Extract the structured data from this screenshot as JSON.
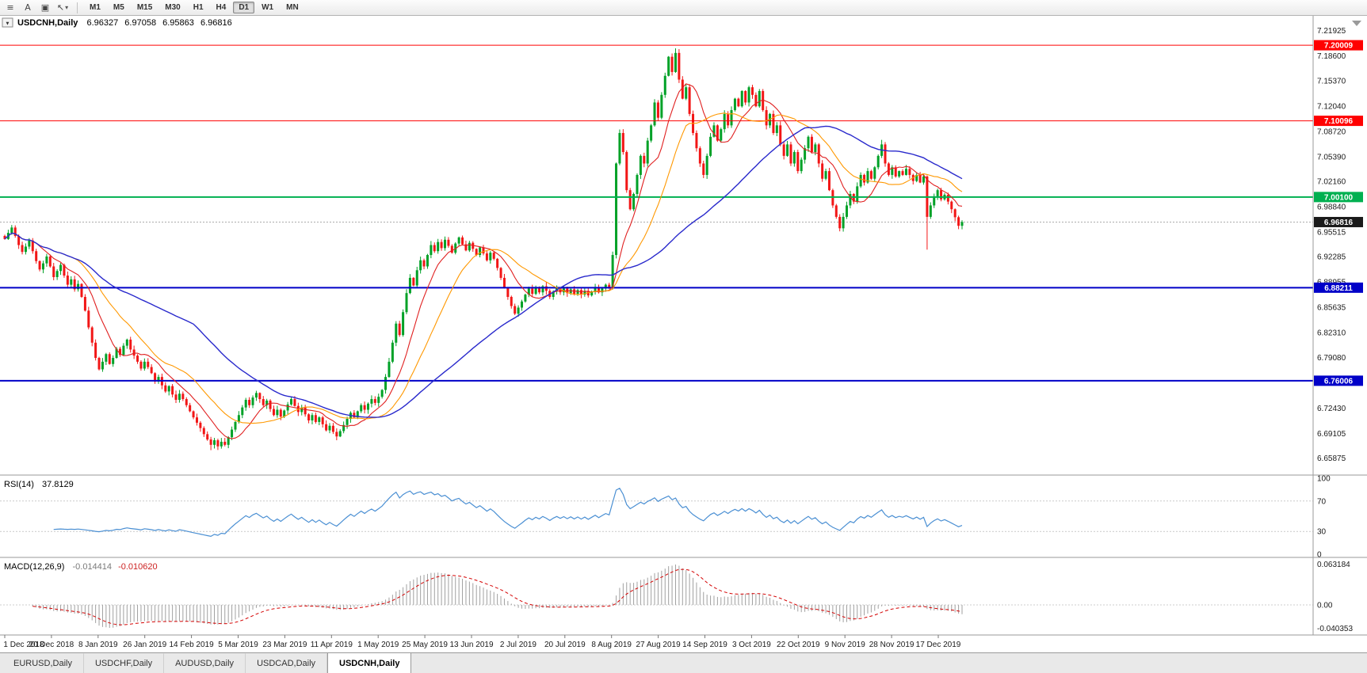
{
  "toolbar": {
    "icons": [
      {
        "name": "chart-list-icon",
        "glyph": "≡"
      },
      {
        "name": "letter-a-icon",
        "glyph": "A"
      },
      {
        "name": "chart-window-icon",
        "glyph": "▣"
      },
      {
        "name": "cursor-tool-icon",
        "glyph": "↖"
      },
      {
        "name": "dropdown-caret",
        "glyph": "▾"
      }
    ],
    "timeframes": [
      {
        "label": "M1"
      },
      {
        "label": "M5"
      },
      {
        "label": "M15"
      },
      {
        "label": "M30"
      },
      {
        "label": "H1"
      },
      {
        "label": "H4"
      },
      {
        "label": "D1",
        "active": true
      },
      {
        "label": "W1"
      },
      {
        "label": "MN"
      }
    ]
  },
  "chart_header": {
    "collapse_glyph": "▼",
    "symbol": "USDCNH,Daily",
    "open": "6.96327",
    "high": "6.97058",
    "low": "6.95863",
    "close": "6.96816"
  },
  "price_axis_labels": [
    "7.21925",
    "7.18600",
    "7.15370",
    "7.12040",
    "7.08720",
    "7.05390",
    "7.02160",
    "6.98840",
    "6.95515",
    "6.92285",
    "6.88955",
    "6.85635",
    "6.82310",
    "6.79080",
    "6.75750",
    "6.72430",
    "6.69105",
    "6.65875"
  ],
  "levels": [
    {
      "value": 7.20009,
      "label": "7.20009",
      "color": "#ff0000",
      "width": 1
    },
    {
      "value": 7.10096,
      "label": "7.10096",
      "color": "#ff0000",
      "width": 1
    },
    {
      "value": 7.001,
      "label": "7.00100",
      "color": "#00b050",
      "width": 2
    },
    {
      "value": 6.88211,
      "label": "6.88211",
      "color": "#0000c8",
      "width": 2
    },
    {
      "value": 6.76006,
      "label": "6.76006",
      "color": "#0000c8",
      "width": 2
    }
  ],
  "current_price": {
    "value": 6.96816,
    "label": "6.96816",
    "color": "#1a1a1a"
  },
  "rsi_panel": {
    "name": "RSI(14)",
    "value": "37.8129",
    "axis_labels": [
      "100",
      "70",
      "30",
      "0"
    ],
    "guide_levels": [
      70,
      30
    ],
    "line_color": "#4a8fd3"
  },
  "macd_panel": {
    "name": "MACD(12,26,9)",
    "macd_value": "-0.014414",
    "signal_value": "-0.010620",
    "axis_labels": [
      "0.063184",
      "0.00",
      "-0.040353"
    ],
    "histogram_color": "#a0a0a0",
    "signal_color": "#d40000"
  },
  "time_axis_labels": [
    "1 Dec 2018",
    "20 Dec 2018",
    "8 Jan 2019",
    "26 Jan 2019",
    "14 Feb 2019",
    "5 Mar 2019",
    "23 Mar 2019",
    "11 Apr 2019",
    "1 May 2019",
    "25 May 2019",
    "13 Jun 2019",
    "2 Jul 2019",
    "20 Jul 2019",
    "8 Aug 2019",
    "27 Aug 2019",
    "14 Sep 2019",
    "3 Oct 2019",
    "22 Oct 2019",
    "9 Nov 2019",
    "28 Nov 2019",
    "17 Dec 2019"
  ],
  "tabs": [
    {
      "label": "EURUSD,Daily"
    },
    {
      "label": "USDCHF,Daily"
    },
    {
      "label": "AUDUSD,Daily"
    },
    {
      "label": "USDCAD,Daily"
    },
    {
      "label": "USDCNH,Daily",
      "active": true
    }
  ],
  "chart_data": {
    "type": "candlestick",
    "symbol": "USDCNH",
    "timeframe": "Daily",
    "price_range": [
      6.6405,
      7.2345
    ],
    "last_bar": {
      "open": 6.96327,
      "high": 6.97058,
      "low": 6.95863,
      "close": 6.96816
    },
    "closes": [
      6.946,
      6.954,
      6.961,
      6.95,
      6.938,
      6.929,
      6.936,
      6.944,
      6.93,
      6.917,
      6.906,
      6.914,
      6.923,
      6.91,
      6.896,
      6.904,
      6.912,
      6.898,
      6.886,
      6.893,
      6.88,
      6.887,
      6.87,
      6.852,
      6.83,
      6.81,
      6.79,
      6.775,
      6.785,
      6.795,
      6.782,
      6.79,
      6.802,
      6.794,
      6.806,
      6.814,
      6.801,
      6.793,
      6.785,
      6.776,
      6.785,
      6.778,
      6.77,
      6.759,
      6.765,
      6.754,
      6.746,
      6.753,
      6.742,
      6.735,
      6.743,
      6.736,
      6.728,
      6.72,
      6.712,
      6.705,
      6.698,
      6.69,
      6.683,
      6.676,
      6.682,
      6.674,
      6.68,
      6.676,
      6.686,
      6.696,
      6.706,
      6.715,
      6.725,
      6.735,
      6.728,
      6.738,
      6.744,
      6.736,
      6.728,
      6.734,
      6.723,
      6.715,
      6.722,
      6.713,
      6.721,
      6.729,
      6.736,
      6.727,
      6.719,
      6.725,
      6.716,
      6.708,
      6.715,
      6.706,
      6.712,
      6.703,
      6.695,
      6.701,
      6.693,
      6.687,
      6.694,
      6.702,
      6.71,
      6.718,
      6.712,
      6.72,
      6.728,
      6.722,
      6.73,
      6.736,
      6.731,
      6.739,
      6.748,
      6.765,
      6.785,
      6.81,
      6.835,
      6.82,
      6.85,
      6.875,
      6.895,
      6.885,
      6.905,
      6.918,
      6.91,
      6.925,
      6.938,
      6.93,
      6.942,
      6.934,
      6.945,
      6.937,
      6.928,
      6.94,
      6.948,
      6.939,
      6.931,
      6.941,
      6.933,
      6.925,
      6.935,
      6.927,
      6.918,
      6.928,
      6.92,
      6.908,
      6.895,
      6.882,
      6.87,
      6.858,
      6.848,
      6.856,
      6.864,
      6.873,
      6.881,
      6.874,
      6.882,
      6.876,
      6.884,
      6.878,
      6.87,
      6.877,
      6.882,
      6.876,
      6.881,
      6.875,
      6.88,
      6.874,
      6.879,
      6.873,
      6.878,
      6.872,
      6.877,
      6.882,
      6.876,
      6.881,
      6.886,
      6.883,
      6.925,
      7.045,
      7.085,
      7.06,
      7.01,
      6.985,
      7.005,
      7.03,
      7.055,
      7.045,
      7.075,
      7.095,
      7.125,
      7.105,
      7.135,
      7.16,
      7.185,
      7.165,
      7.19,
      7.155,
      7.13,
      7.145,
      7.11,
      7.085,
      7.065,
      7.045,
      7.03,
      7.055,
      7.08,
      7.095,
      7.075,
      7.09,
      7.11,
      7.095,
      7.115,
      7.13,
      7.12,
      7.14,
      7.125,
      7.145,
      7.135,
      7.12,
      7.14,
      7.115,
      7.095,
      7.11,
      7.085,
      7.095,
      7.07,
      7.055,
      7.07,
      7.045,
      7.06,
      7.035,
      7.05,
      7.065,
      7.08,
      7.06,
      7.07,
      7.045,
      7.025,
      7.035,
      7.01,
      6.99,
      6.975,
      6.96,
      6.975,
      6.99,
      7.005,
      6.995,
      7.015,
      7.03,
      7.02,
      7.035,
      7.025,
      7.04,
      7.055,
      7.07,
      7.045,
      7.03,
      7.04,
      7.028,
      7.035,
      7.03,
      7.038,
      7.03,
      7.022,
      7.03,
      7.02,
      7.028,
      6.975,
      6.99,
      7.002,
      7.01,
      6.998,
      7.004,
      6.995,
      6.985,
      6.9745,
      6.96327,
      6.96816
    ],
    "wick_overrides": {
      "59": {
        "low": 6.669
      },
      "95": {
        "low": 6.682
      },
      "192": {
        "high": 7.196
      },
      "239": {
        "low": 6.956
      },
      "251": {
        "high": 7.076
      },
      "264": {
        "low": 6.932
      }
    },
    "moving_averages": [
      {
        "period": 10,
        "color": "#e02020"
      },
      {
        "period": 21,
        "color": "#ff9800"
      },
      {
        "period": 55,
        "color": "#2929cc"
      }
    ],
    "indicators": [
      {
        "name": "RSI",
        "period": 14,
        "last": 37.8129
      },
      {
        "name": "MACD",
        "fast": 12,
        "slow": 26,
        "signal": 9,
        "last": -0.014414,
        "last_signal": -0.01062
      }
    ]
  }
}
